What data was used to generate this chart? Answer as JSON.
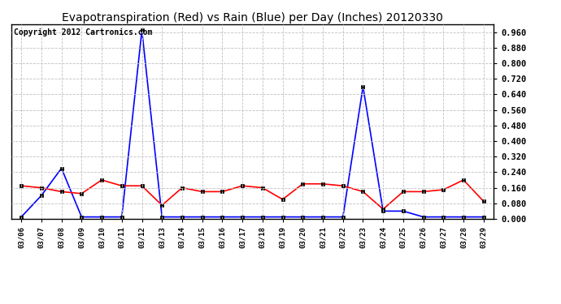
{
  "title": "Evapotranspiration (Red) vs Rain (Blue) per Day (Inches) 20120330",
  "copyright": "Copyright 2012 Cartronics.com",
  "dates": [
    "03/06",
    "03/07",
    "03/08",
    "03/09",
    "03/10",
    "03/11",
    "03/12",
    "03/13",
    "03/14",
    "03/15",
    "03/16",
    "03/17",
    "03/18",
    "03/19",
    "03/20",
    "03/21",
    "03/22",
    "03/23",
    "03/24",
    "03/25",
    "03/26",
    "03/27",
    "03/28",
    "03/29"
  ],
  "rain_blue": [
    0.01,
    0.12,
    0.26,
    0.01,
    0.01,
    0.01,
    0.97,
    0.01,
    0.01,
    0.01,
    0.01,
    0.01,
    0.01,
    0.01,
    0.01,
    0.01,
    0.01,
    0.68,
    0.04,
    0.04,
    0.01,
    0.01,
    0.01,
    0.01
  ],
  "et_red": [
    0.17,
    0.16,
    0.14,
    0.13,
    0.2,
    0.17,
    0.17,
    0.07,
    0.16,
    0.14,
    0.14,
    0.17,
    0.16,
    0.1,
    0.18,
    0.18,
    0.17,
    0.14,
    0.05,
    0.14,
    0.14,
    0.15,
    0.2,
    0.09
  ],
  "ylim": [
    0.0,
    1.0
  ],
  "yticks": [
    0.0,
    0.08,
    0.16,
    0.24,
    0.32,
    0.4,
    0.48,
    0.56,
    0.64,
    0.72,
    0.8,
    0.88,
    0.96
  ],
  "bg_color": "#ffffff",
  "grid_color": "#c0c0c0",
  "blue_color": "#0000ff",
  "red_color": "#ff0000",
  "title_fontsize": 10,
  "copyright_fontsize": 7
}
